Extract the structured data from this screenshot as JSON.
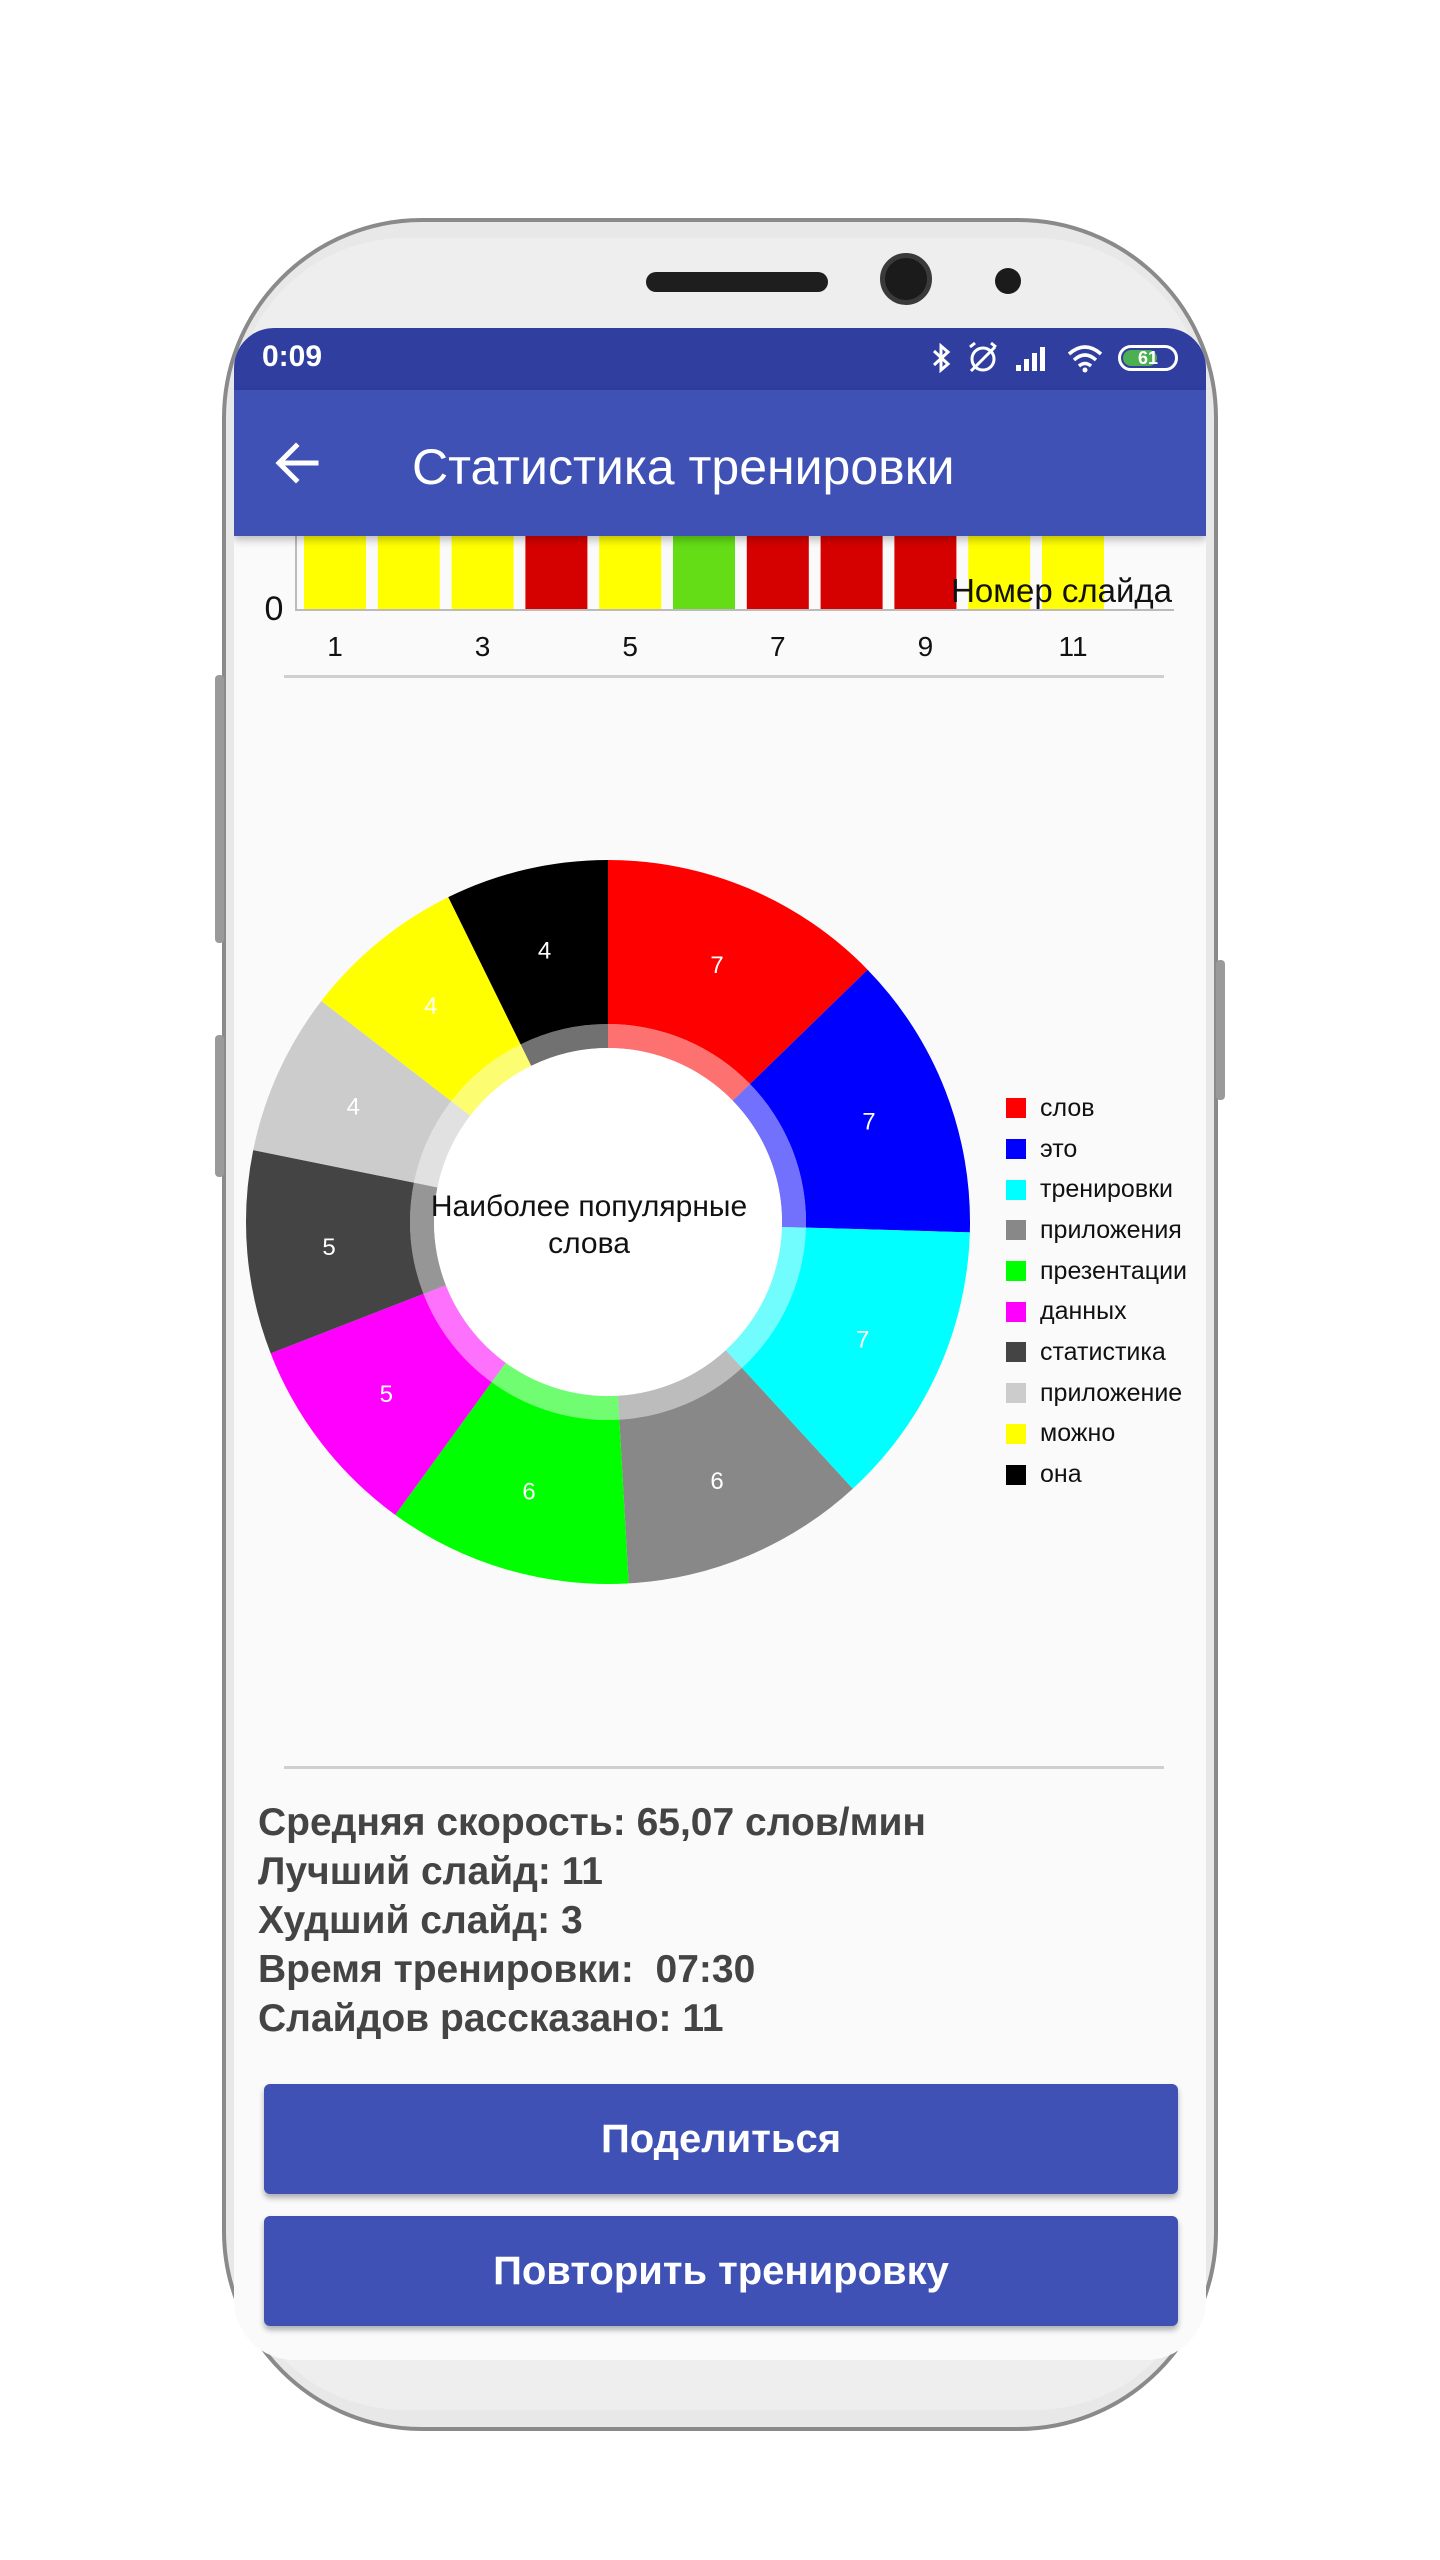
{
  "status_bar": {
    "time": "0:09",
    "battery": "61"
  },
  "app_bar": {
    "title": "Статистика тренировки"
  },
  "bar_chart": {
    "zero_label": "0",
    "x_axis_label": "Номер слайда",
    "x_ticks": [
      "1",
      "3",
      "5",
      "7",
      "9",
      "11"
    ],
    "bar_colors": [
      "#ffff00",
      "#ffff00",
      "#ffff00",
      "#d50000",
      "#ffff00",
      "#64dd17",
      "#d50000",
      "#d50000",
      "#d50000",
      "#ffff00",
      "#ffff00"
    ]
  },
  "chart_data": {
    "type": "pie",
    "center_text": [
      "Наиболее популярные",
      "слова"
    ],
    "slices": [
      {
        "label": "слов",
        "value": 7,
        "color": "#ff0000"
      },
      {
        "label": "это",
        "value": 7,
        "color": "#0000ff"
      },
      {
        "label": "тренировки",
        "value": 7,
        "color": "#00ffff"
      },
      {
        "label": "приложения",
        "value": 6,
        "color": "#888888"
      },
      {
        "label": "презентации",
        "value": 6,
        "color": "#00ff00"
      },
      {
        "label": "данных",
        "value": 5,
        "color": "#ff00ff"
      },
      {
        "label": "статистика",
        "value": 5,
        "color": "#444444"
      },
      {
        "label": "приложение",
        "value": 4,
        "color": "#cccccc"
      },
      {
        "label": "можно",
        "value": 4,
        "color": "#ffff00"
      },
      {
        "label": "она",
        "value": 4,
        "color": "#000000"
      }
    ],
    "legend_position": "right"
  },
  "stats": [
    "Средняя скорость: 65,07 слов/мин",
    "Лучший слайд: 11",
    "Худший слайд: 3",
    "Время тренировки:  07:30",
    "Слайдов рассказано: 11"
  ],
  "buttons": {
    "share": "Поделиться",
    "repeat": "Повторить тренировку"
  }
}
